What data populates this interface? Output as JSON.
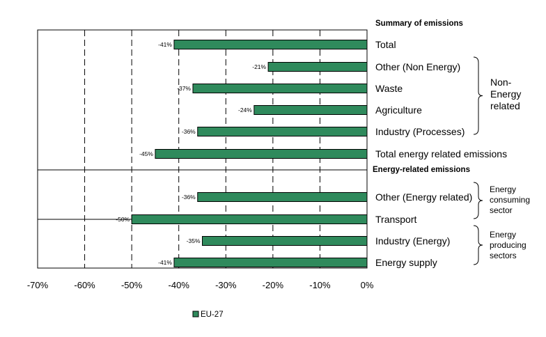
{
  "chart_data": {
    "type": "bar",
    "orientation": "horizontal",
    "categories": [
      "Total",
      "Other (Non Energy)",
      "Waste",
      "Agriculture",
      "Industry (Processes)",
      "Total energy related emissions",
      "Other (Energy related)",
      "Transport",
      "Industry (Energy)",
      "Energy supply"
    ],
    "series": [
      {
        "name": "EU-27",
        "values": [
          -41,
          -21,
          -37,
          -24,
          -36,
          -45,
          -36,
          -50,
          -35,
          -41
        ]
      }
    ],
    "bar_labels": [
      "-41%",
      "-21%",
      "-37%",
      "-24%",
      "-36%",
      "-45%",
      "-36%",
      "-50%",
      "-35%",
      "-41%"
    ],
    "section_headings": [
      "Summary of emissions",
      "Energy-related emissions"
    ],
    "group_labels": [
      {
        "lines": [
          "Non-",
          "Energy",
          "related"
        ]
      },
      {
        "lines": [
          "Energy",
          "consuming",
          "sector"
        ]
      },
      {
        "lines": [
          "Energy",
          "producing",
          "sectors"
        ]
      }
    ],
    "xlim": [
      -70,
      0
    ],
    "x_ticks": [
      -70,
      -60,
      -50,
      -40,
      -30,
      -20,
      -10,
      0
    ],
    "x_tick_labels": [
      "-70%",
      "-60%",
      "-50%",
      "-40%",
      "-30%",
      "-20%",
      "-10%",
      "0%"
    ],
    "grid": "vertical dashed",
    "legend": {
      "position": "bottom",
      "entries": [
        "EU-27"
      ]
    },
    "colors": {
      "bar": "#2f8a5c",
      "bar_stroke": "#000000",
      "grid": "#000000"
    }
  }
}
